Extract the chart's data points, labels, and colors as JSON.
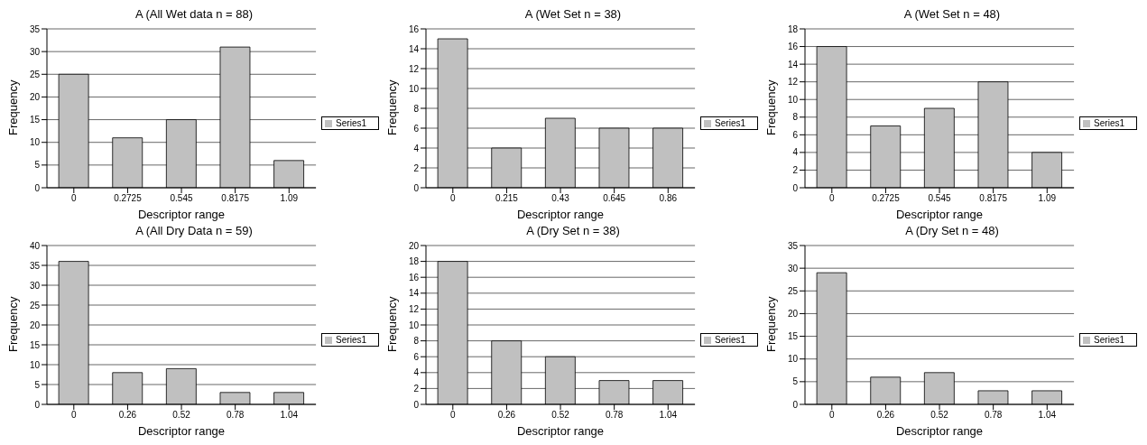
{
  "chart_data": [
    {
      "type": "bar",
      "title": "A (All Wet data n = 88)",
      "xlabel": "Descriptor range",
      "ylabel": "Frequency",
      "categories": [
        "0",
        "0.2725",
        "0.545",
        "0.8175",
        "1.09"
      ],
      "series": [
        {
          "name": "Series1",
          "color": "#c0c0c0",
          "values": [
            25,
            11,
            15,
            31,
            6
          ]
        }
      ],
      "ylim": [
        0,
        35
      ],
      "yticks": [
        0,
        5,
        10,
        15,
        20,
        25,
        30,
        35
      ],
      "grid": "y",
      "legend": "right"
    },
    {
      "type": "bar",
      "title": "A (Wet Set n = 38)",
      "xlabel": "Descriptor range",
      "ylabel": "Frequency",
      "categories": [
        "0",
        "0.215",
        "0.43",
        "0.645",
        "0.86"
      ],
      "series": [
        {
          "name": "Series1",
          "color": "#c0c0c0",
          "values": [
            15,
            4,
            7,
            6,
            6
          ]
        }
      ],
      "ylim": [
        0,
        16
      ],
      "yticks": [
        0,
        2,
        4,
        6,
        8,
        10,
        12,
        14,
        16
      ],
      "grid": "y",
      "legend": "right"
    },
    {
      "type": "bar",
      "title": "A (Wet Set n = 48)",
      "xlabel": "Descriptor range",
      "ylabel": "Frequency",
      "categories": [
        "0",
        "0.2725",
        "0.545",
        "0.8175",
        "1.09"
      ],
      "series": [
        {
          "name": "Series1",
          "color": "#c0c0c0",
          "values": [
            16,
            7,
            9,
            12,
            4
          ]
        }
      ],
      "ylim": [
        0,
        18
      ],
      "yticks": [
        0,
        2,
        4,
        6,
        8,
        10,
        12,
        14,
        16,
        18
      ],
      "grid": "y",
      "legend": "right"
    },
    {
      "type": "bar",
      "title": "A (All Dry Data n = 59)",
      "xlabel": "Descriptor range",
      "ylabel": "Frequency",
      "categories": [
        "0",
        "0.26",
        "0.52",
        "0.78",
        "1.04"
      ],
      "series": [
        {
          "name": "Series1",
          "color": "#c0c0c0",
          "values": [
            36,
            8,
            9,
            3,
            3
          ]
        }
      ],
      "ylim": [
        0,
        40
      ],
      "yticks": [
        0,
        5,
        10,
        15,
        20,
        25,
        30,
        35,
        40
      ],
      "grid": "y",
      "legend": "right"
    },
    {
      "type": "bar",
      "title": "A (Dry Set n = 38)",
      "xlabel": "Descriptor range",
      "ylabel": "Frequency",
      "categories": [
        "0",
        "0.26",
        "0.52",
        "0.78",
        "1.04"
      ],
      "series": [
        {
          "name": "Series1",
          "color": "#c0c0c0",
          "values": [
            18,
            8,
            6,
            3,
            3
          ]
        }
      ],
      "ylim": [
        0,
        20
      ],
      "yticks": [
        0,
        2,
        4,
        6,
        8,
        10,
        12,
        14,
        16,
        18,
        20
      ],
      "grid": "y",
      "legend": "right"
    },
    {
      "type": "bar",
      "title": "A (Dry Set n = 48)",
      "xlabel": "Descriptor range",
      "ylabel": "Frequency",
      "categories": [
        "0",
        "0.26",
        "0.52",
        "0.78",
        "1.04"
      ],
      "series": [
        {
          "name": "Series1",
          "color": "#c0c0c0",
          "values": [
            29,
            6,
            7,
            3,
            3
          ]
        }
      ],
      "ylim": [
        0,
        35
      ],
      "yticks": [
        0,
        5,
        10,
        15,
        20,
        25,
        30,
        35
      ],
      "grid": "y",
      "legend": "right"
    }
  ]
}
